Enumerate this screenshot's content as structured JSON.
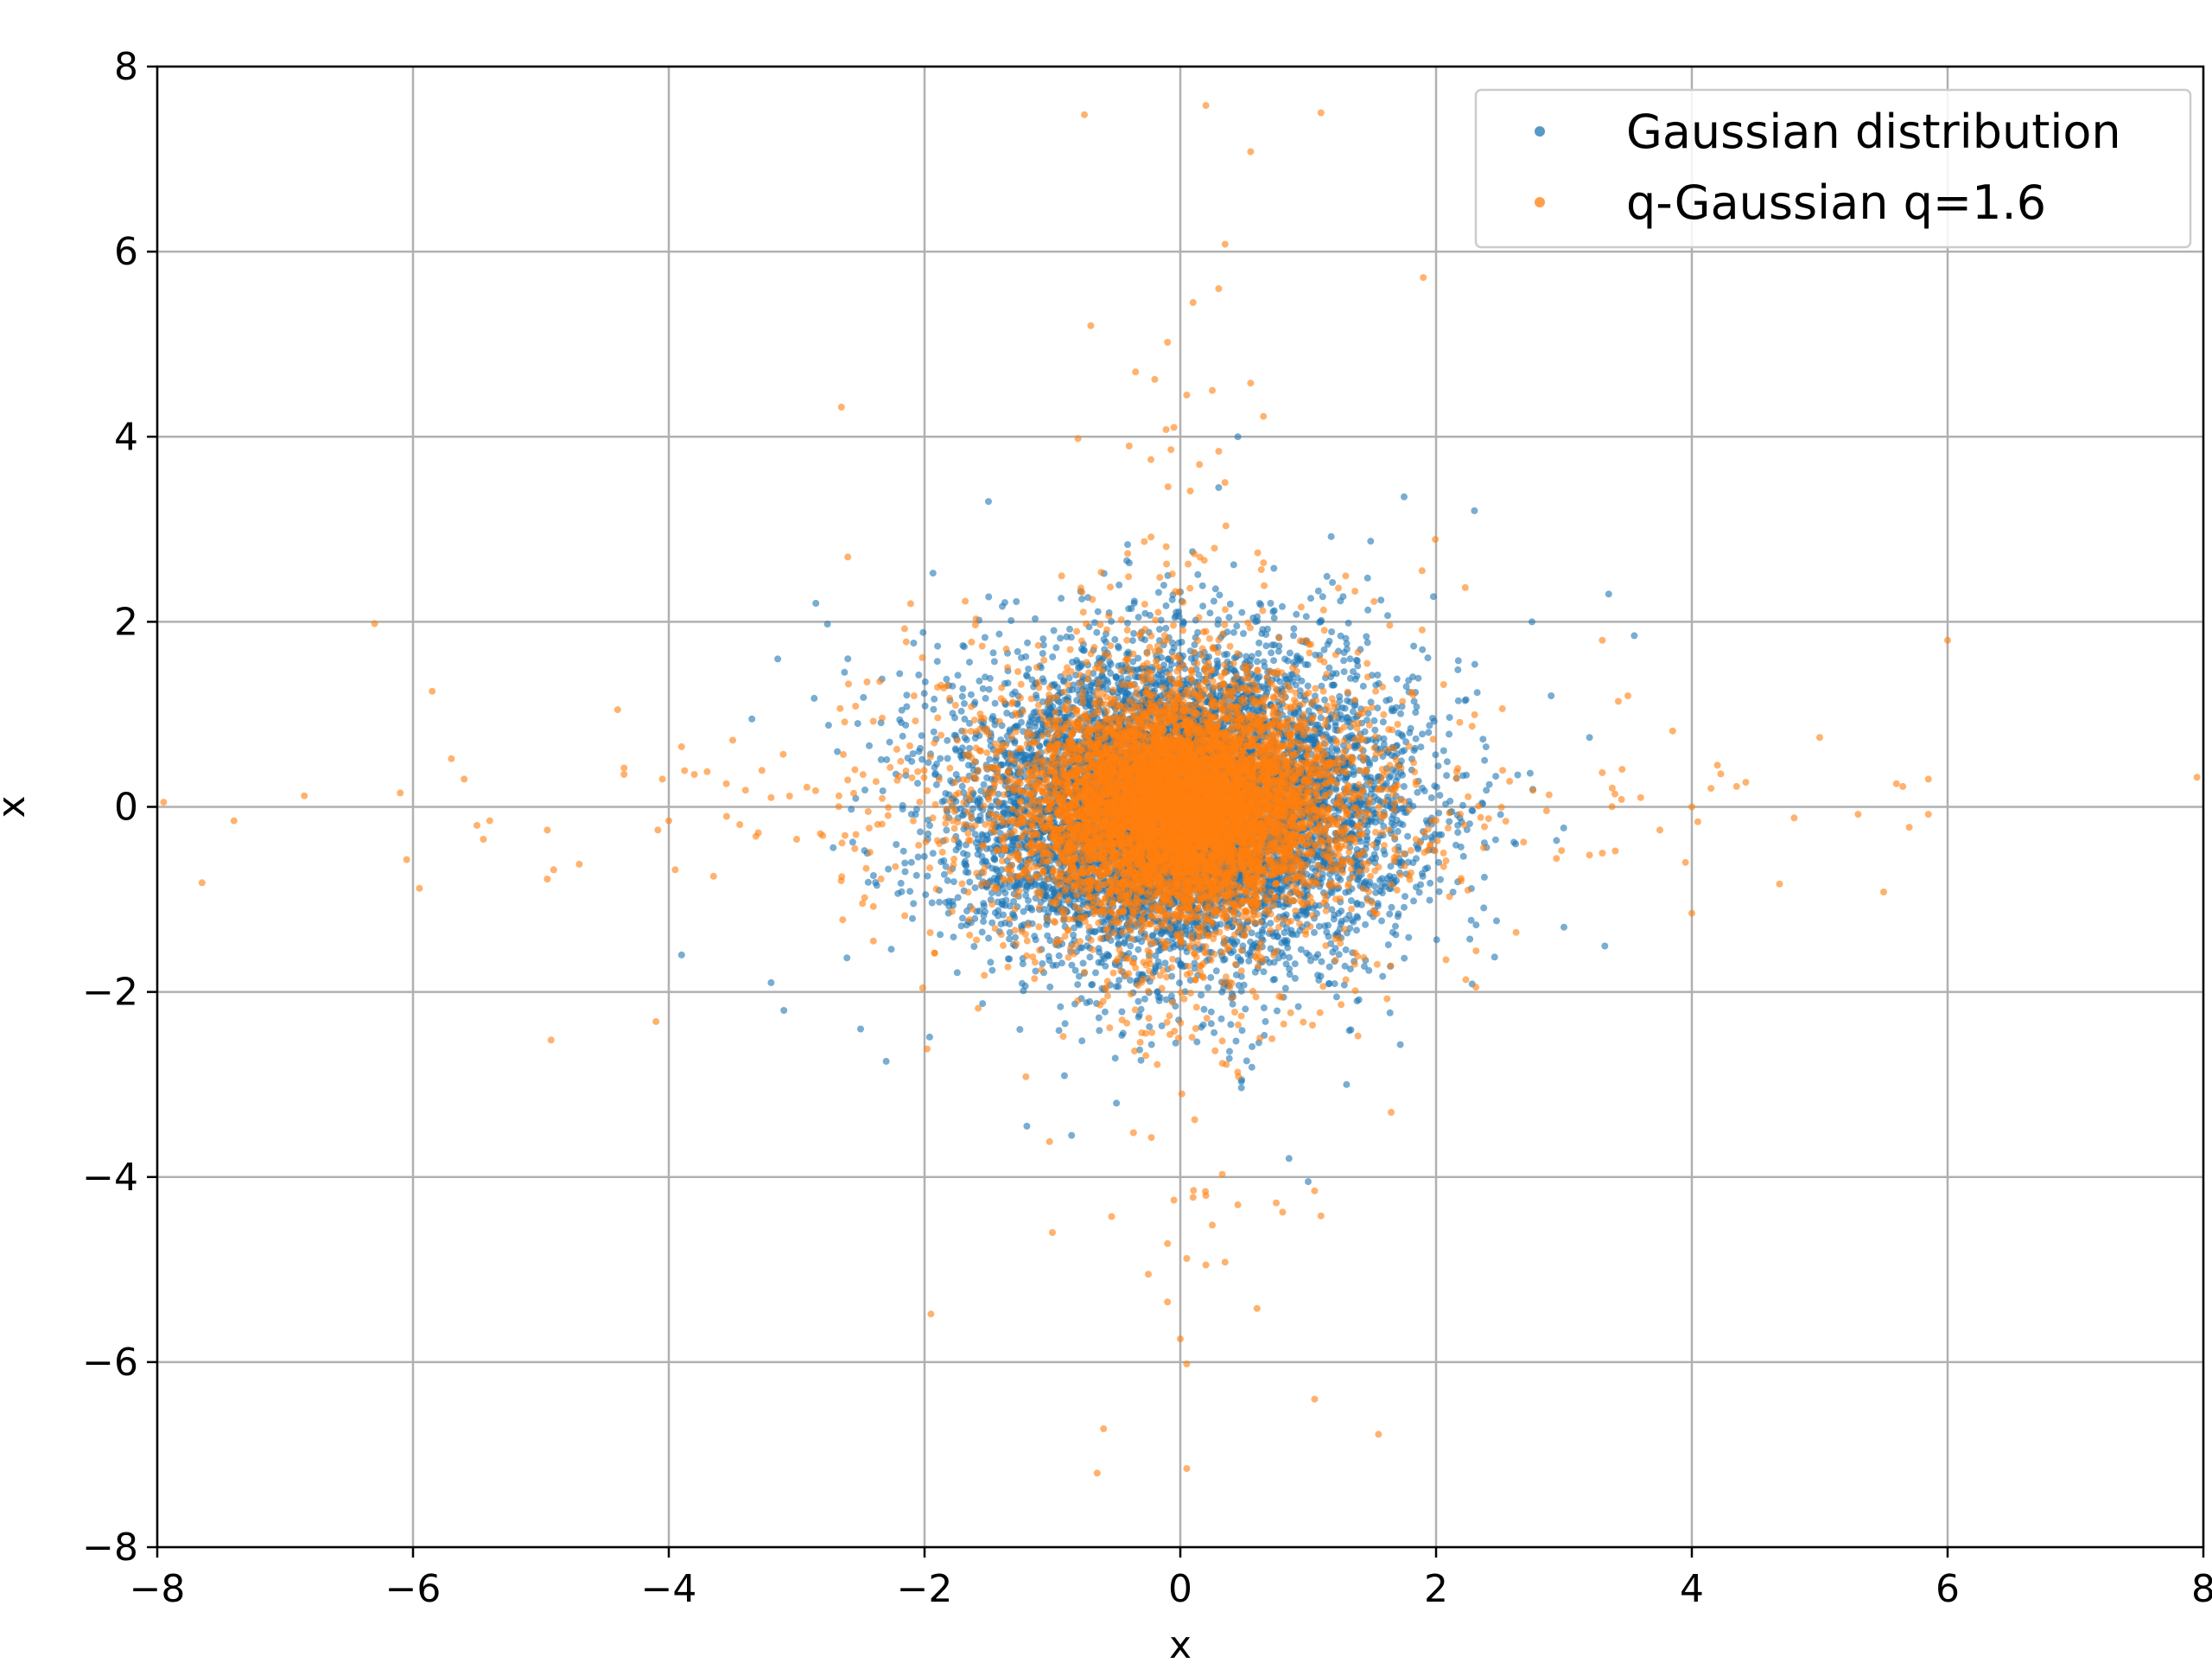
{
  "chart_data": {
    "type": "scatter",
    "title": "",
    "xlabel": "x",
    "ylabel": "x",
    "xlim": [
      -8,
      8
    ],
    "ylim": [
      -8,
      8
    ],
    "xticks": [
      -8,
      -6,
      -4,
      -2,
      0,
      2,
      4,
      6,
      8
    ],
    "yticks": [
      -8,
      -6,
      -4,
      -2,
      0,
      2,
      4,
      6,
      8
    ],
    "xtick_labels": [
      "−8",
      "−6",
      "−4",
      "−2",
      "0",
      "2",
      "4",
      "6",
      "8"
    ],
    "ytick_labels": [
      "−8",
      "−6",
      "−4",
      "−2",
      "0",
      "2",
      "4",
      "6",
      "8"
    ],
    "grid": true,
    "legend_position": "top-right",
    "series": [
      {
        "name": "Gaussian distribution",
        "color": "#1f77b4",
        "distribution": "normal",
        "sigma_x": 0.85,
        "sigma_y": 0.85,
        "approx_count": 8000,
        "points": [
          [
            -3.1,
            -2.2
          ],
          [
            -3.9,
            -1.6
          ],
          [
            -3.35,
            0.95
          ],
          [
            -2.85,
            2.2
          ],
          [
            -1.2,
            -3.45
          ],
          [
            -1.5,
            3.3
          ],
          [
            0.45,
            4.0
          ],
          [
            0.3,
            3.45
          ],
          [
            1.75,
            3.35
          ],
          [
            2.3,
            3.2
          ],
          [
            3.35,
            2.3
          ],
          [
            3.55,
            1.85
          ],
          [
            3.0,
            -1.3
          ],
          [
            0.85,
            -3.8
          ],
          [
            1.0,
            -4.05
          ],
          [
            -0.85,
            -3.55
          ],
          [
            -2.3,
            -2.75
          ],
          [
            -2.5,
            -2.4
          ],
          [
            2.75,
            2.0
          ],
          [
            -3.2,
            -1.9
          ],
          [
            3.2,
            0.75
          ],
          [
            -2.6,
            1.6
          ],
          [
            2.9,
            1.2
          ],
          [
            1.3,
            -3.0
          ]
        ]
      },
      {
        "name": "q-Gaussian q=1.6",
        "color": "#ff7f0e",
        "distribution": "q-gaussian",
        "q": 1.6,
        "approx_count": 8000,
        "points": [
          [
            -7.95,
            0.05
          ],
          [
            -7.65,
            -0.82
          ],
          [
            -7.4,
            -0.15
          ],
          [
            -6.85,
            0.12
          ],
          [
            -6.3,
            1.98
          ],
          [
            -6.1,
            0.15
          ],
          [
            -6.05,
            -0.57
          ],
          [
            -5.95,
            -0.88
          ],
          [
            -5.85,
            1.25
          ],
          [
            -5.7,
            0.52
          ],
          [
            -5.6,
            0.3
          ],
          [
            -5.5,
            -0.2
          ],
          [
            -5.45,
            -0.35
          ],
          [
            -5.4,
            -0.15
          ],
          [
            -4.95,
            -0.25
          ],
          [
            -4.95,
            -0.78
          ],
          [
            -4.9,
            -0.68
          ],
          [
            -4.92,
            -2.52
          ],
          [
            -4.7,
            -0.62
          ],
          [
            -4.4,
            1.05
          ],
          [
            -4.35,
            0.35
          ],
          [
            -4.35,
            0.42
          ],
          [
            -4.1,
            -2.32
          ],
          [
            -4.05,
            0.3
          ],
          [
            -4.0,
            -0.15
          ],
          [
            -3.95,
            -0.68
          ],
          [
            -3.9,
            0.65
          ],
          [
            -3.8,
            0.35
          ],
          [
            -3.7,
            0.38
          ],
          [
            -3.65,
            -0.75
          ],
          [
            -3.5,
            0.72
          ],
          [
            -3.55,
            0.25
          ],
          [
            -3.4,
            0.18
          ],
          [
            -3.3,
            -0.28
          ],
          [
            -3.2,
            0.1
          ],
          [
            -2.65,
            4.32
          ],
          [
            -2.6,
            2.7
          ],
          [
            -3.0,
            -0.35
          ],
          [
            -2.45,
            1.35
          ],
          [
            -2.4,
            -1.45
          ],
          [
            -0.75,
            7.48
          ],
          [
            -0.7,
            5.2
          ],
          [
            0.2,
            7.58
          ],
          [
            0.55,
            7.08
          ],
          [
            1.1,
            7.5
          ],
          [
            0.35,
            6.08
          ],
          [
            0.3,
            5.6
          ],
          [
            0.1,
            5.45
          ],
          [
            -0.1,
            5.02
          ],
          [
            1.9,
            5.72
          ],
          [
            -0.35,
            4.7
          ],
          [
            -0.2,
            4.62
          ],
          [
            0.05,
            4.45
          ],
          [
            0.25,
            4.5
          ],
          [
            0.55,
            4.58
          ],
          [
            0.65,
            4.22
          ],
          [
            -0.05,
            4.1
          ],
          [
            -0.8,
            3.98
          ],
          [
            -0.4,
            3.9
          ],
          [
            0.15,
            3.7
          ],
          [
            -1.95,
            -5.48
          ],
          [
            -1.0,
            -4.6
          ],
          [
            -0.6,
            -6.72
          ],
          [
            -0.65,
            -7.2
          ],
          [
            0.05,
            -7.15
          ],
          [
            0.05,
            -6.02
          ],
          [
            0.0,
            -5.75
          ],
          [
            1.05,
            -6.4
          ],
          [
            1.55,
            -6.78
          ],
          [
            0.6,
            -5.42
          ],
          [
            -0.25,
            -5.05
          ],
          [
            -0.1,
            -5.35
          ],
          [
            0.2,
            -4.95
          ],
          [
            0.05,
            -4.88
          ],
          [
            0.1,
            -4.22
          ],
          [
            0.2,
            -4.2
          ],
          [
            -0.05,
            -4.25
          ],
          [
            0.45,
            -4.3
          ],
          [
            0.75,
            -4.28
          ],
          [
            0.8,
            -4.38
          ],
          [
            1.05,
            -4.15
          ],
          [
            1.1,
            -4.42
          ],
          [
            0.25,
            -4.52
          ],
          [
            -0.1,
            -4.72
          ],
          [
            0.35,
            -4.92
          ],
          [
            3.3,
            1.8
          ],
          [
            3.2,
            -0.52
          ],
          [
            3.3,
            -0.5
          ],
          [
            3.45,
            0.08
          ],
          [
            3.6,
            0.1
          ],
          [
            3.75,
            -0.25
          ],
          [
            3.85,
            0.82
          ],
          [
            3.95,
            -0.6
          ],
          [
            4.0,
            0.0
          ],
          [
            4.0,
            -1.15
          ],
          [
            4.15,
            0.2
          ],
          [
            4.2,
            0.45
          ],
          [
            4.35,
            0.22
          ],
          [
            4.8,
            -0.12
          ],
          [
            5.0,
            0.75
          ],
          [
            5.3,
            -0.08
          ],
          [
            5.5,
            -0.92
          ],
          [
            5.6,
            0.25
          ],
          [
            5.65,
            0.22
          ],
          [
            5.7,
            -0.22
          ],
          [
            5.85,
            -0.08
          ],
          [
            5.85,
            0.3
          ],
          [
            6.0,
            1.8
          ],
          [
            7.95,
            0.32
          ],
          [
            3.5,
            1.2
          ]
        ]
      }
    ]
  }
}
